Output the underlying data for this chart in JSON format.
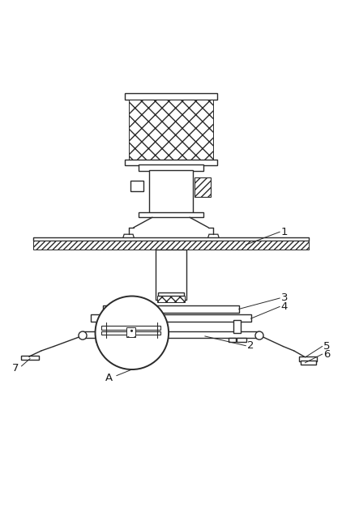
{
  "bg_color": "#ffffff",
  "line_color": "#2a2a2a",
  "label_color": "#1a1a1a",
  "fig_width": 4.22,
  "fig_height": 6.27,
  "dpi": 100
}
